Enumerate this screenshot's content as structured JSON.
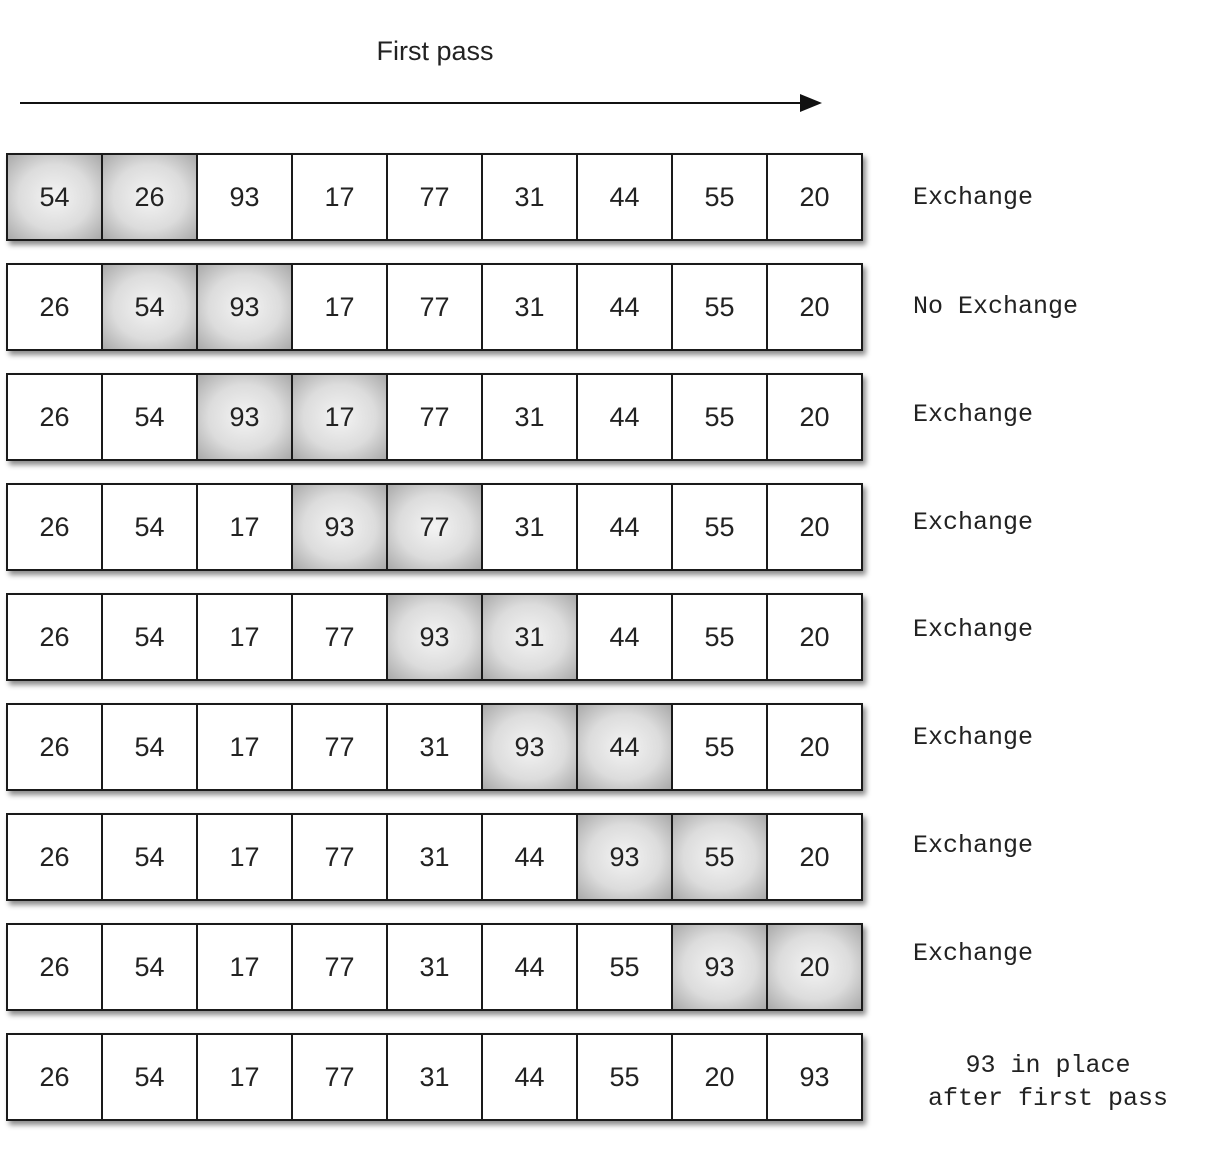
{
  "title": "First pass",
  "rows": [
    {
      "values": [
        "54",
        "26",
        "93",
        "17",
        "77",
        "31",
        "44",
        "55",
        "20"
      ],
      "highlight": [
        0,
        1
      ],
      "note": "Exchange"
    },
    {
      "values": [
        "26",
        "54",
        "93",
        "17",
        "77",
        "31",
        "44",
        "55",
        "20"
      ],
      "highlight": [
        1,
        2
      ],
      "note": "No Exchange"
    },
    {
      "values": [
        "26",
        "54",
        "93",
        "17",
        "77",
        "31",
        "44",
        "55",
        "20"
      ],
      "highlight": [
        2,
        3
      ],
      "note": "Exchange"
    },
    {
      "values": [
        "26",
        "54",
        "17",
        "93",
        "77",
        "31",
        "44",
        "55",
        "20"
      ],
      "highlight": [
        3,
        4
      ],
      "note": "Exchange"
    },
    {
      "values": [
        "26",
        "54",
        "17",
        "77",
        "93",
        "31",
        "44",
        "55",
        "20"
      ],
      "highlight": [
        4,
        5
      ],
      "note": "Exchange"
    },
    {
      "values": [
        "26",
        "54",
        "17",
        "77",
        "31",
        "93",
        "44",
        "55",
        "20"
      ],
      "highlight": [
        5,
        6
      ],
      "note": "Exchange"
    },
    {
      "values": [
        "26",
        "54",
        "17",
        "77",
        "31",
        "44",
        "93",
        "55",
        "20"
      ],
      "highlight": [
        6,
        7
      ],
      "note": "Exchange"
    },
    {
      "values": [
        "26",
        "54",
        "17",
        "77",
        "31",
        "44",
        "55",
        "93",
        "20"
      ],
      "highlight": [
        7,
        8
      ],
      "note": "Exchange"
    },
    {
      "values": [
        "26",
        "54",
        "17",
        "77",
        "31",
        "44",
        "55",
        "20",
        "93"
      ],
      "highlight": [],
      "note": "93 in place\nafter first pass"
    }
  ]
}
